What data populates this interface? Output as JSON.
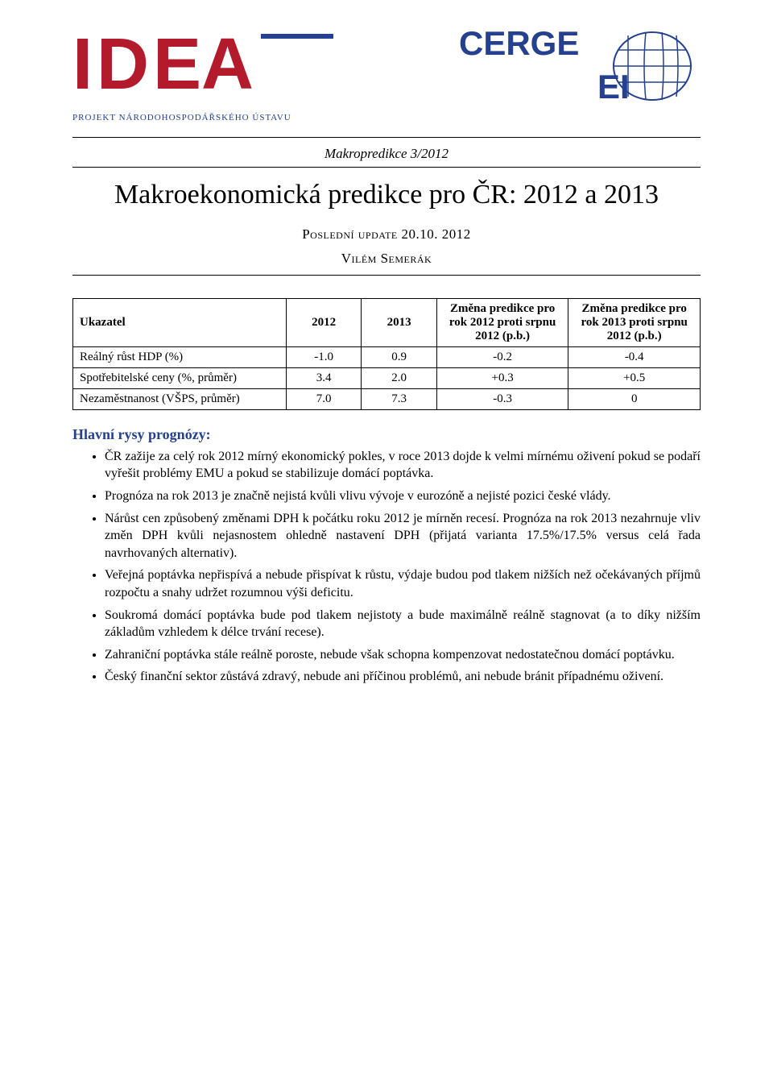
{
  "logo": {
    "idea_text": "IDEA",
    "idea_color": "#b31b2c",
    "idea_accent": "#25408f",
    "project_subtitle": "PROJEKT NÁRODOHOSPODÁŘSKÉHO ÚSTAVU",
    "cerge_text": "CERGE",
    "ei_text": "EI",
    "cerge_color": "#25408f"
  },
  "header": {
    "pre_title": "Makropredikce 3/2012",
    "title": "Makroekonomická predikce pro ČR: 2012 a 2013",
    "update_line": "Poslední update 20.10. 2012",
    "author": "Vilém Semerák"
  },
  "table": {
    "columns": [
      "Ukazatel",
      "2012",
      "2013",
      "Změna predikce pro rok 2012 proti srpnu 2012 (p.b.)",
      "Změna predikce pro rok 2013 proti srpnu 2012 (p.b.)"
    ],
    "col_widths_pct": [
      34,
      12,
      12,
      21,
      21
    ],
    "rows": [
      {
        "label": "Reálný růst HDP (%)",
        "values": [
          "-1.0",
          "0.9",
          "-0.2",
          "-0.4"
        ]
      },
      {
        "label": "Spotřebitelské ceny (%, průměr)",
        "values": [
          "3.4",
          "2.0",
          "+0.3",
          "+0.5"
        ]
      },
      {
        "label": "Nezaměstnanost (VŠPS, průměr)",
        "values": [
          "7.0",
          "7.3",
          "-0.3",
          "0"
        ]
      }
    ],
    "border_color": "#000000",
    "header_fontweight": "bold",
    "cell_fontsize": 15
  },
  "section": {
    "heading": "Hlavní rysy prognózy:",
    "heading_color": "#25408f",
    "bullets": [
      "ČR zažije za celý rok 2012 mírný ekonomický pokles, v roce 2013 dojde k velmi mírnému oživení pokud se podaří vyřešit problémy EMU a pokud se stabilizuje domácí poptávka.",
      "Prognóza na rok 2013 je značně nejistá kvůli vlivu vývoje v eurozóně a nejisté pozici české vlády.",
      "Nárůst cen způsobený změnami DPH k počátku roku 2012 je mírněn recesí. Prognóza na rok 2013 nezahrnuje vliv změn DPH kvůli nejasnostem ohledně nastavení DPH (přijatá varianta 17.5%/17.5% versus celá řada navrhovaných alternativ).",
      "Veřejná poptávka nepřispívá a nebude přispívat k růstu, výdaje budou pod tlakem nižších než očekávaných příjmů rozpočtu a snahy udržet rozumnou výši deficitu.",
      "Soukromá domácí poptávka bude pod tlakem nejistoty a bude maximálně reálně stagnovat (a to díky nižším základům vzhledem k délce trvání recese).",
      "Zahraniční poptávka stále reálně poroste, nebude však schopna kompenzovat nedostatečnou domácí poptávku.",
      "Český finanční sektor zůstává zdravý, nebude ani příčinou problémů, ani nebude bránit případnému oživení."
    ]
  }
}
